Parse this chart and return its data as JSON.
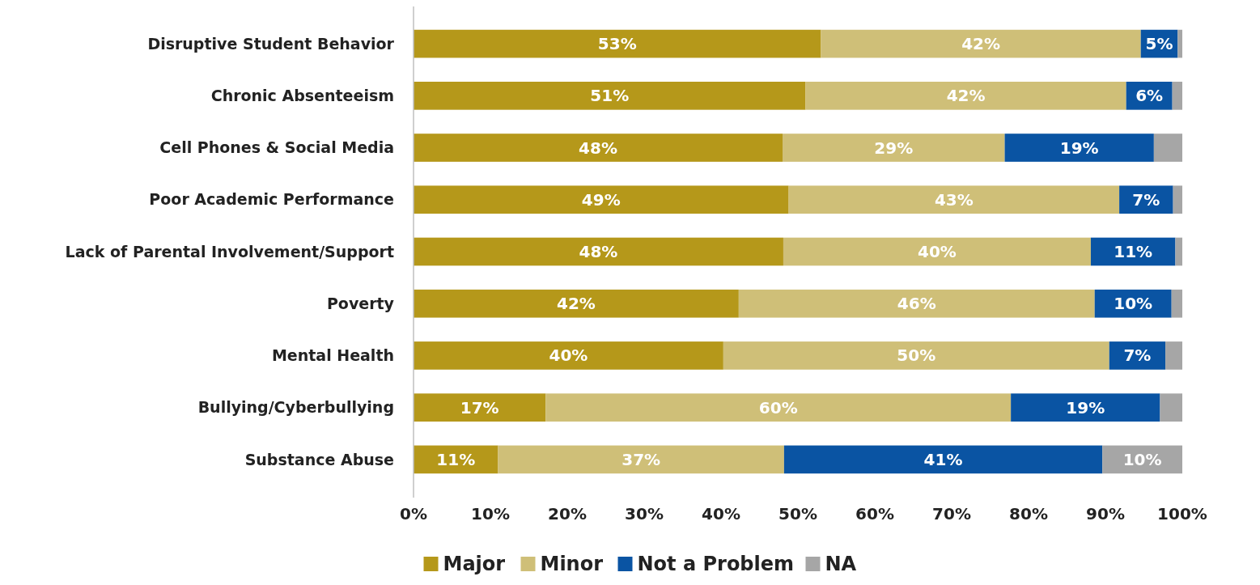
{
  "chart_data": {
    "type": "bar",
    "orientation": "horizontal",
    "stacked": true,
    "legend": "bottom",
    "grid": false,
    "categories": [
      "Disruptive Student Behavior",
      "Chronic Absenteeism",
      "Cell Phones & Social Media",
      "Poor Academic Performance",
      "Lack of Parental Involvement/Support",
      "Poverty",
      "Mental Health",
      "Bullying/Cyberbullying",
      "Substance Abuse"
    ],
    "series": [
      {
        "name": "Major",
        "color": "#b5981a",
        "values": [
          53,
          51,
          48,
          48.8,
          48.1,
          42.3,
          40.3,
          17.2,
          11
        ],
        "value_labels": [
          "53%",
          "51%",
          "48%",
          "49%",
          "48%",
          "42%",
          "40%",
          "17%",
          "11%"
        ]
      },
      {
        "name": "Minor",
        "color": "#cfbf78",
        "values": [
          41.6,
          41.7,
          28.9,
          43,
          40,
          46.3,
          50.2,
          60.5,
          37.2
        ],
        "value_labels": [
          "42%",
          "42%",
          "29%",
          "43%",
          "40%",
          "46%",
          "50%",
          "60%",
          "37%"
        ]
      },
      {
        "name": "Not a Problem",
        "color": "#0a54a3",
        "values": [
          4.8,
          6,
          19.4,
          7,
          11,
          10,
          7.3,
          19.4,
          41.4
        ],
        "value_labels": [
          "5%",
          "6%",
          "19%",
          "7%",
          "11%",
          "10%",
          "7%",
          "19%",
          "41%"
        ]
      },
      {
        "name": "NA",
        "color": "#a6a6a6",
        "values": [
          0.6,
          1.3,
          3.7,
          1.2,
          0.9,
          1.4,
          2.2,
          2.9,
          10.4
        ],
        "value_labels": [
          null,
          null,
          null,
          null,
          null,
          null,
          null,
          null,
          "10%"
        ]
      }
    ],
    "xlim": [
      0,
      100
    ],
    "xticks": [
      {
        "value": 0,
        "label": "0%"
      },
      {
        "value": 10,
        "label": "10%"
      },
      {
        "value": 20,
        "label": "20%"
      },
      {
        "value": 30,
        "label": "30%"
      },
      {
        "value": 40,
        "label": "40%"
      },
      {
        "value": 50,
        "label": "50%"
      },
      {
        "value": 60,
        "label": "60%"
      },
      {
        "value": 70,
        "label": "70%"
      },
      {
        "value": 80,
        "label": "80%"
      },
      {
        "value": 90,
        "label": "90%"
      },
      {
        "value": 100,
        "label": "100%"
      }
    ]
  }
}
